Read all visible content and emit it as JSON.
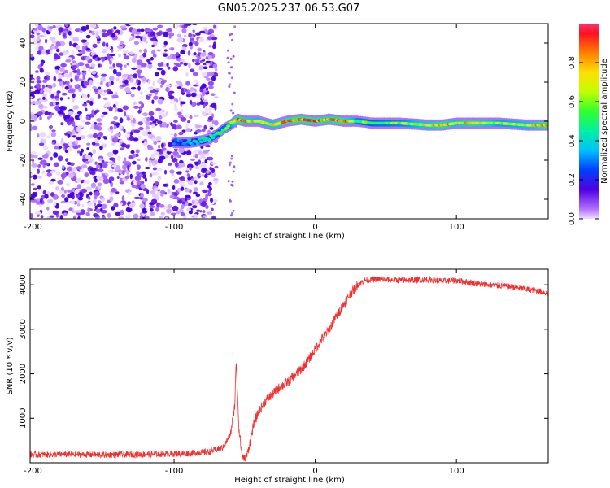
{
  "title": "GN05.2025.237.06.53.G07",
  "chart_data": [
    {
      "type": "heatmap",
      "name": "spectrogram",
      "xlabel": "Height of straight line (km)",
      "ylabel": "Frequency (Hz)",
      "xlim": [
        -202,
        165
      ],
      "ylim": [
        -50,
        50
      ],
      "xticks": [
        -200,
        -100,
        0,
        100
      ],
      "xtick_labels": [
        "-200",
        "-100",
        "0",
        "100"
      ],
      "yticks": [
        -40,
        -20,
        0,
        20,
        40
      ],
      "ytick_labels": [
        "-40",
        "-20",
        "0",
        "20",
        "40"
      ],
      "colorbar": {
        "label": "Normalized spectral amplitude",
        "range": [
          0,
          1
        ],
        "ticks": [
          0.0,
          0.2,
          0.4,
          0.6,
          0.8
        ],
        "tick_labels": [
          "0.0",
          "0.2",
          "0.4",
          "0.6",
          "0.8"
        ]
      },
      "noise_region_x": [
        -202,
        -72
      ],
      "signal_track": {
        "x": [
          -100,
          -90,
          -80,
          -75,
          -70,
          -65,
          -60,
          -55,
          -50,
          -40,
          -30,
          -20,
          -10,
          0,
          10,
          20,
          30,
          40,
          60,
          80,
          90,
          100,
          110,
          130,
          150,
          165
        ],
        "frequency": [
          -11,
          -11,
          -10,
          -9,
          -7,
          -4,
          -2,
          1,
          0,
          0,
          -2,
          0,
          1,
          0,
          1,
          0,
          0,
          -1,
          -1,
          -2,
          -2,
          -1,
          -1,
          -1,
          -2,
          -2
        ],
        "amplitude": [
          0.3,
          0.35,
          0.4,
          0.45,
          0.5,
          0.55,
          0.6,
          0.95,
          0.85,
          0.7,
          0.75,
          0.9,
          0.95,
          0.9,
          0.85,
          0.95,
          0.6,
          0.55,
          0.6,
          0.75,
          0.9,
          0.7,
          0.85,
          0.65,
          0.7,
          0.95
        ]
      }
    },
    {
      "type": "line",
      "name": "snr",
      "xlabel": "Height of straight line (km)",
      "ylabel": "SNR (10 * v/v)",
      "xlim": [
        -202,
        165
      ],
      "ylim": [
        0,
        4350
      ],
      "xticks": [
        -200,
        -100,
        0,
        100
      ],
      "xtick_labels": [
        "-200",
        "-100",
        "0",
        "100"
      ],
      "yticks": [
        1000,
        2000,
        3000,
        4000
      ],
      "ytick_labels": [
        "1000",
        "2000",
        "3000",
        "4000"
      ],
      "color": "#f03030",
      "series": [
        {
          "name": "SNR",
          "x": [
            -202,
            -180,
            -150,
            -120,
            -90,
            -75,
            -65,
            -60,
            -57,
            -56,
            -55,
            -54,
            -52,
            -50,
            -48,
            -46,
            -44,
            -42,
            -40,
            -35,
            -30,
            -25,
            -20,
            -15,
            -10,
            -5,
            0,
            5,
            10,
            15,
            20,
            25,
            30,
            35,
            40,
            50,
            60,
            70,
            80,
            90,
            100,
            110,
            120,
            130,
            140,
            150,
            160,
            165
          ],
          "y": [
            180,
            185,
            180,
            190,
            210,
            250,
            350,
            650,
            1300,
            2300,
            1500,
            750,
            200,
            60,
            200,
            500,
            800,
            1000,
            1150,
            1400,
            1550,
            1700,
            1800,
            1950,
            2100,
            2300,
            2550,
            2800,
            3000,
            3300,
            3550,
            3800,
            4000,
            4100,
            4120,
            4120,
            4100,
            4110,
            4120,
            4080,
            4100,
            4050,
            4000,
            3980,
            3950,
            3900,
            3850,
            3800
          ],
          "noise": 140
        }
      ]
    }
  ]
}
